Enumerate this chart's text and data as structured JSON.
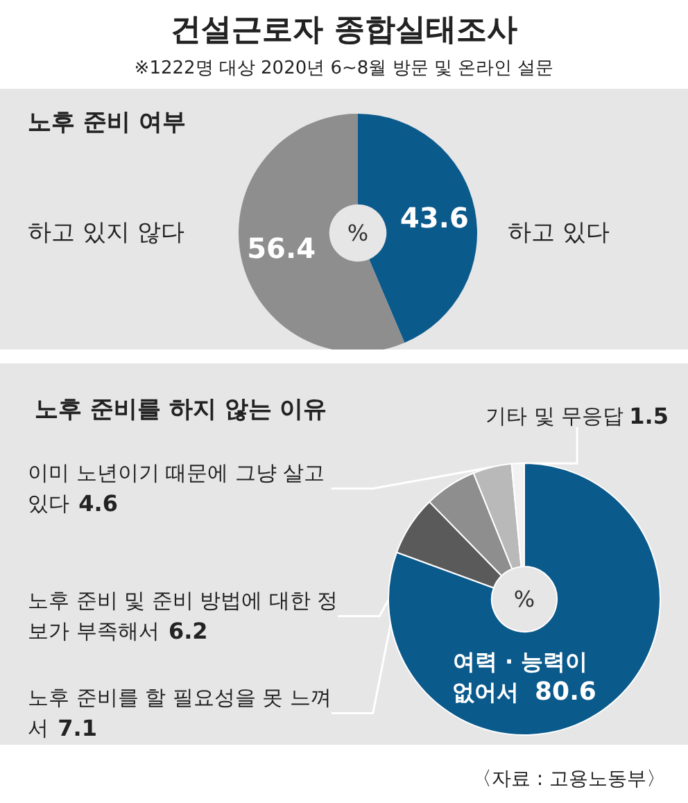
{
  "chart_data": [
    {
      "type": "donut",
      "title": "건설근로자 종합실태조사",
      "subtitle": "※1222명 대상 2020년 6~8월 방문 및 온라인 설문",
      "annotations": [
        "노후 준비 여부",
        "%"
      ],
      "categories": [
        "하고 있다",
        "하고 있지 않다"
      ],
      "values": [
        43.6,
        56.4
      ],
      "colors": [
        "#0b5a8c",
        "#8e8e8e"
      ],
      "data_labels": true
    },
    {
      "type": "donut",
      "title": "노후 준비를 하지 않는 이유",
      "annotations": [
        "%",
        "〈자료 : 고용노동부〉"
      ],
      "categories": [
        "여력 · 능력이 없어서",
        "노후 준비를 할 필요성을 못 느껴서",
        "노후 준비 및 준비 방법에 대한 정보가 부족해서",
        "이미 노년이기 때문에 그냥 살고 있다",
        "기타 및 무응답"
      ],
      "values": [
        80.6,
        7.1,
        6.2,
        4.6,
        1.5
      ],
      "colors": [
        "#0b5a8c",
        "#5a5a5a",
        "#8e8e8e",
        "#b9b9b9",
        "#f2f2f2"
      ],
      "data_labels": true
    }
  ]
}
